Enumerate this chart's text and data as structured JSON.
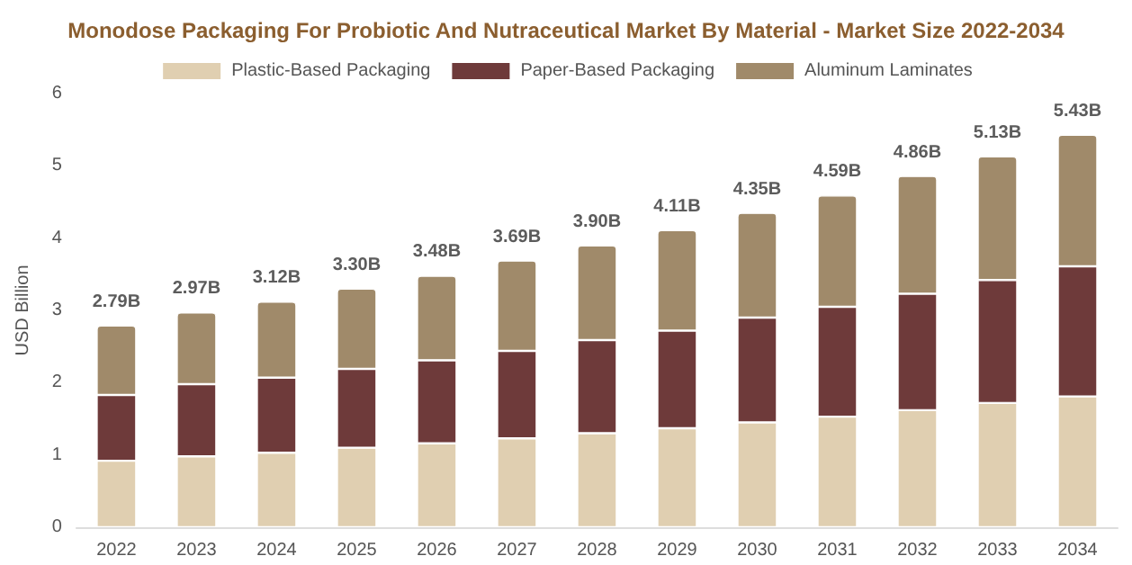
{
  "chart_data": {
    "type": "bar",
    "title": "Monodose Packaging For Probiotic And Nutraceutical Market By Material - Market Size 2022-2034",
    "ylabel": "USD Billion",
    "categories": [
      "2022",
      "2023",
      "2024",
      "2025",
      "2026",
      "2027",
      "2028",
      "2029",
      "2030",
      "2031",
      "2032",
      "2033",
      "2034"
    ],
    "stacked": true,
    "series": [
      {
        "name": "Plastic-Based Packaging",
        "color": "#e0cfb1",
        "values": [
          0.92,
          0.98,
          1.03,
          1.1,
          1.16,
          1.23,
          1.3,
          1.37,
          1.45,
          1.53,
          1.62,
          1.72,
          1.81
        ]
      },
      {
        "name": "Paper-Based Packaging",
        "color": "#6e3a3a",
        "values": [
          0.91,
          1.0,
          1.04,
          1.09,
          1.15,
          1.21,
          1.29,
          1.35,
          1.45,
          1.52,
          1.61,
          1.7,
          1.8
        ]
      },
      {
        "name": "Aluminum Laminates",
        "color": "#a08a6a",
        "values": [
          0.96,
          0.99,
          1.05,
          1.11,
          1.17,
          1.25,
          1.31,
          1.39,
          1.45,
          1.54,
          1.63,
          1.71,
          1.82
        ]
      }
    ],
    "totals": [
      "2.79B",
      "2.97B",
      "3.12B",
      "3.30B",
      "3.48B",
      "3.69B",
      "3.90B",
      "4.11B",
      "4.35B",
      "4.59B",
      "4.86B",
      "5.13B",
      "5.43B"
    ],
    "ylim": [
      0,
      6
    ],
    "yticks": [
      0,
      1,
      2,
      3,
      4,
      5,
      6
    ],
    "grid": false,
    "legend": "top"
  }
}
